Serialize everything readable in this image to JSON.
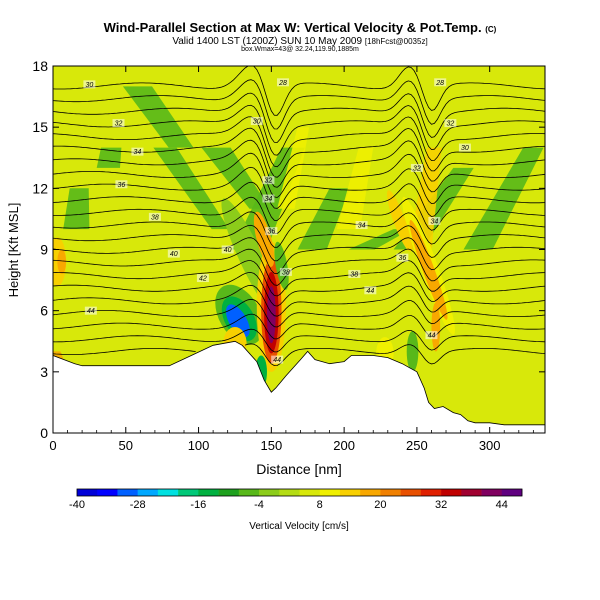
{
  "title": "Wind-Parallel Section at Max W: Vertical Velocity & Pot.Temp.",
  "title_mark": "(C)",
  "subtitle": "Valid 1400 LST (1200Z) SUN 10 May 2009",
  "subtitle_suffix": "[18hFcst@0035z]",
  "subtitle2": "box.Wmax=43@ 32.24,119.90,1885m",
  "chart_data": {
    "type": "heatmap",
    "xlabel": "Distance [nm]",
    "ylabel": "Height [Kft MSL]",
    "xlim": [
      0,
      338
    ],
    "ylim": [
      0,
      18
    ],
    "x_ticks": [
      0,
      50,
      100,
      150,
      200,
      250,
      300
    ],
    "y_ticks": [
      0,
      3,
      6,
      9,
      12,
      15,
      18
    ],
    "colorbar": {
      "label": "Vertical Velocity [cm/s]",
      "tick_labels": [
        -40,
        -28,
        -16,
        -4,
        8,
        20,
        32,
        44
      ],
      "range": [
        -40,
        48
      ],
      "colors": [
        "#0000d8",
        "#0000ff",
        "#0060ff",
        "#00a8ff",
        "#00e0e0",
        "#00c878",
        "#00b040",
        "#1ea01e",
        "#58b81a",
        "#8ccc1a",
        "#b4dc14",
        "#d8e80a",
        "#f0f000",
        "#f8d000",
        "#f8a800",
        "#f08000",
        "#e85000",
        "#e02000",
        "#c00000",
        "#a00030",
        "#800060",
        "#600080"
      ]
    },
    "theta_contour_labels": [
      "28",
      "30",
      "32",
      "34",
      "36",
      "38",
      "40",
      "42",
      "44"
    ],
    "terrain_height_kft": {
      "x": [
        0,
        15,
        20,
        80,
        95,
        110,
        125,
        130,
        140,
        145,
        150,
        153,
        160,
        170,
        175,
        180,
        190,
        200,
        205,
        220,
        230,
        240,
        245,
        250,
        255,
        258,
        262,
        268,
        275,
        280,
        285,
        290,
        300,
        310,
        320,
        338
      ],
      "y": [
        3.8,
        3.4,
        3.3,
        3.3,
        3.8,
        4.3,
        4.5,
        4.3,
        3.5,
        2.6,
        2.0,
        2.2,
        2.8,
        3.6,
        4.0,
        3.6,
        3.4,
        3.5,
        3.8,
        3.8,
        3.7,
        3.4,
        3.2,
        3.0,
        2.2,
        1.5,
        1.2,
        1.3,
        1.0,
        0.9,
        0.6,
        0.5,
        0.5,
        0.4,
        0.4,
        0.4
      ]
    },
    "velocity_features": [
      {
        "kind": "updraft",
        "x": 150,
        "z": 6.0,
        "value": 44
      },
      {
        "kind": "downdraft",
        "x": 128,
        "z": 5.6,
        "value": -32
      },
      {
        "kind": "updraft",
        "x": 258,
        "z": 8.0,
        "value": 22
      },
      {
        "kind": "downdraft",
        "x": 247,
        "z": 4.0,
        "value": -6
      },
      {
        "kind": "updraft",
        "x": 5,
        "z": 8.4,
        "value": 18
      }
    ]
  }
}
